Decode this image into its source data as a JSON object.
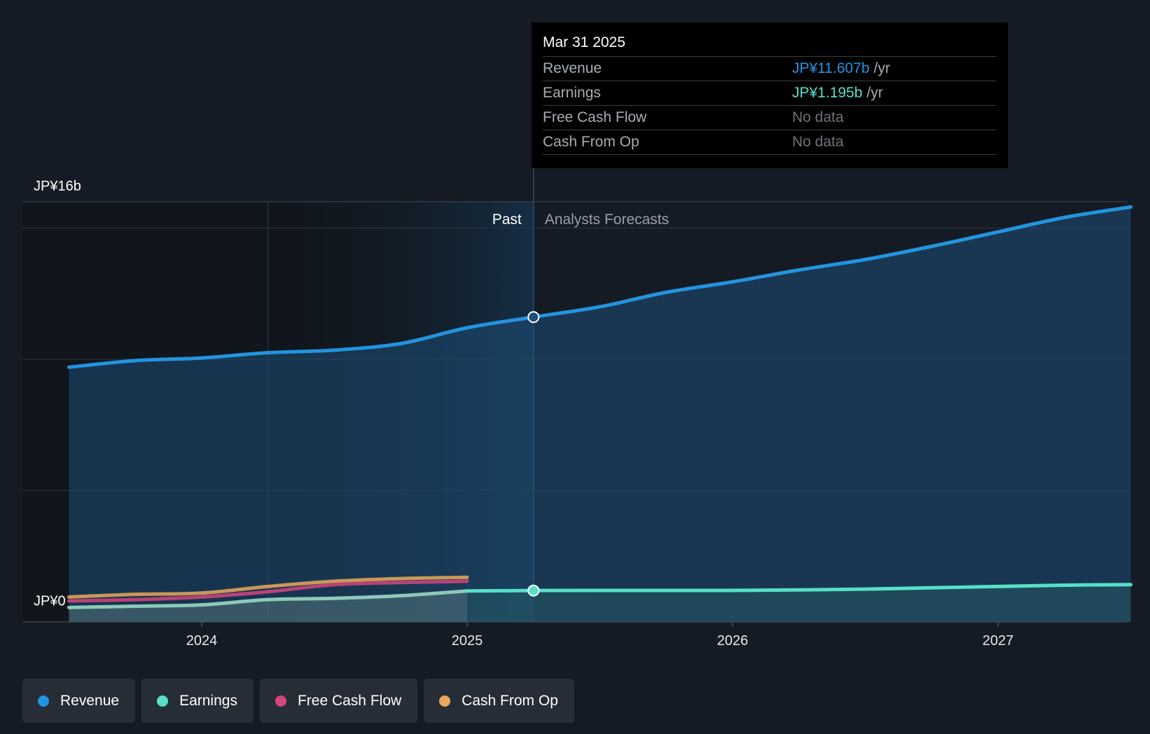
{
  "chart_data": {
    "type": "area",
    "y_axis": {
      "labels": [
        "JP¥16b",
        "JP¥0"
      ],
      "ylim": [
        0,
        16
      ]
    },
    "x_axis": {
      "ticks": [
        "2024",
        "2025",
        "2026",
        "2027"
      ]
    },
    "regions": {
      "past_label": "Past",
      "forecast_label": "Analysts Forecasts"
    },
    "series": [
      {
        "name": "Revenue",
        "color": "#2394df",
        "points": [
          [
            2023.5,
            9.7
          ],
          [
            2023.75,
            9.95
          ],
          [
            2024.0,
            10.05
          ],
          [
            2024.25,
            10.25
          ],
          [
            2024.5,
            10.35
          ],
          [
            2024.75,
            10.6
          ],
          [
            2025.0,
            11.2
          ],
          [
            2025.25,
            11.607
          ],
          [
            2025.5,
            12.0
          ],
          [
            2025.75,
            12.55
          ],
          [
            2026.0,
            12.95
          ],
          [
            2026.25,
            13.4
          ],
          [
            2026.5,
            13.8
          ],
          [
            2026.75,
            14.3
          ],
          [
            2027.0,
            14.85
          ],
          [
            2027.25,
            15.4
          ],
          [
            2027.5,
            15.8
          ]
        ]
      },
      {
        "name": "Earnings",
        "color": "#56e0c8",
        "points": [
          [
            2023.5,
            0.55
          ],
          [
            2023.75,
            0.6
          ],
          [
            2024.0,
            0.65
          ],
          [
            2024.25,
            0.85
          ],
          [
            2024.5,
            0.9
          ],
          [
            2024.75,
            1.0
          ],
          [
            2025.0,
            1.18
          ],
          [
            2025.25,
            1.195
          ],
          [
            2025.5,
            1.2
          ],
          [
            2025.75,
            1.2
          ],
          [
            2026.0,
            1.2
          ],
          [
            2026.25,
            1.22
          ],
          [
            2026.5,
            1.25
          ],
          [
            2026.75,
            1.3
          ],
          [
            2027.0,
            1.35
          ],
          [
            2027.25,
            1.4
          ],
          [
            2027.5,
            1.42
          ]
        ]
      },
      {
        "name": "Free Cash Flow",
        "color": "#d6457c",
        "points": [
          [
            2023.5,
            0.8
          ],
          [
            2023.75,
            0.85
          ],
          [
            2024.0,
            0.95
          ],
          [
            2024.25,
            1.15
          ],
          [
            2024.5,
            1.42
          ],
          [
            2024.75,
            1.5
          ],
          [
            2025.0,
            1.55
          ]
        ]
      },
      {
        "name": "Cash From Op",
        "color": "#e9a95c",
        "points": [
          [
            2023.5,
            0.95
          ],
          [
            2023.75,
            1.05
          ],
          [
            2024.0,
            1.1
          ],
          [
            2024.25,
            1.35
          ],
          [
            2024.5,
            1.55
          ],
          [
            2024.75,
            1.65
          ],
          [
            2025.0,
            1.7
          ]
        ]
      }
    ],
    "tooltip": {
      "date": "Mar 31 2025",
      "rows": [
        {
          "label": "Revenue",
          "value": "JP¥11.607b",
          "unit": "/yr",
          "color": "#2394df"
        },
        {
          "label": "Earnings",
          "value": "JP¥1.195b",
          "unit": "/yr",
          "color": "#56e0c8"
        },
        {
          "label": "Free Cash Flow",
          "value": "No data",
          "unit": "",
          "color": ""
        },
        {
          "label": "Cash From Op",
          "value": "No data",
          "unit": "",
          "color": ""
        }
      ]
    },
    "legend": [
      {
        "label": "Revenue",
        "color": "#2394df"
      },
      {
        "label": "Earnings",
        "color": "#56e0c8"
      },
      {
        "label": "Free Cash Flow",
        "color": "#d6457c"
      },
      {
        "label": "Cash From Op",
        "color": "#e9a95c"
      }
    ]
  }
}
